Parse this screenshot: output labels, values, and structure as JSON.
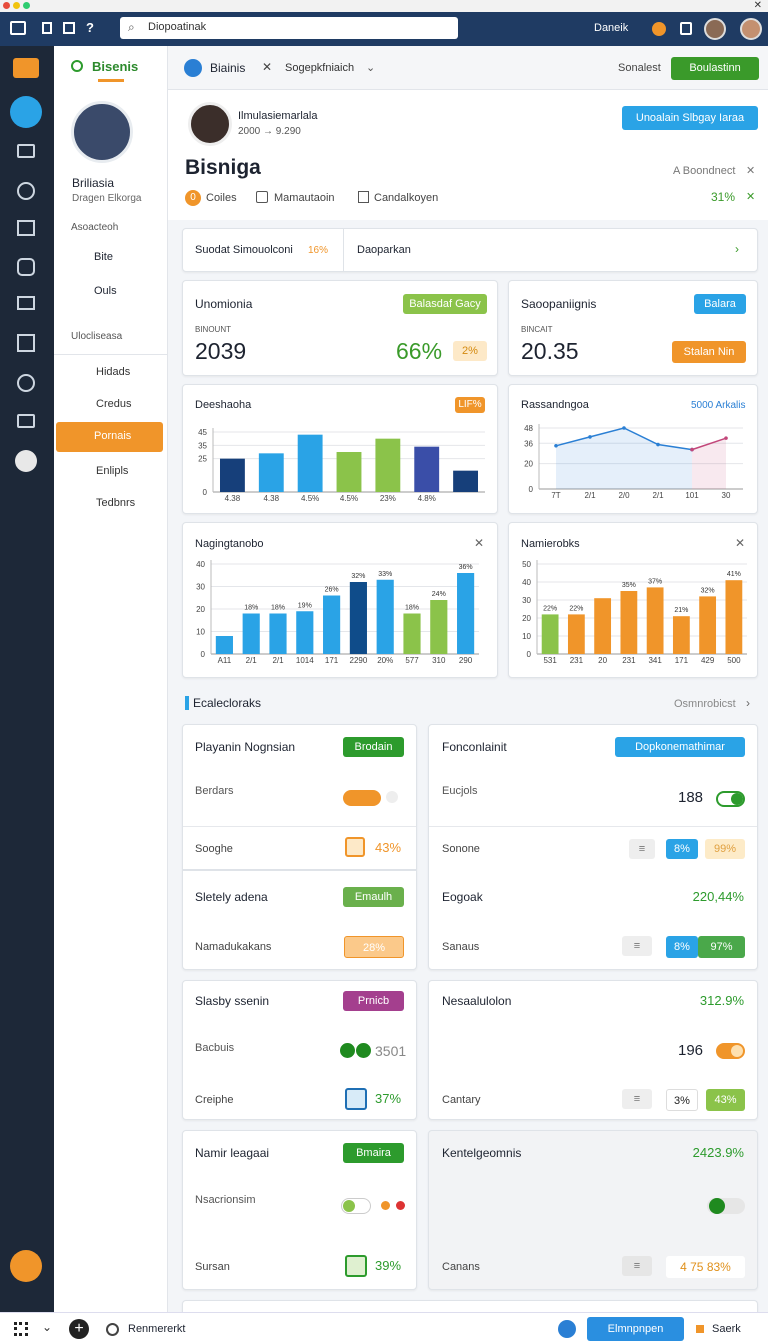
{
  "header": {
    "search": "Diopoatinak",
    "user": "Daneik"
  },
  "sidebar": {
    "brand": "Bisenis",
    "name": "Briliasia",
    "role": "Dragen Elkorga",
    "group1": "Asoacteoh",
    "items1": [
      "Bite",
      "Ouls"
    ],
    "group2": "Ulocliseasa",
    "items2": [
      "Hidads",
      "Credus",
      "Pornais",
      "Enlipls",
      "Tedbnrs"
    ]
  },
  "toolbar": {
    "tab": "Biainis",
    "breadcrumb": "Sogepkfniaich",
    "search": "Sonalest",
    "button": "Boulastinn"
  },
  "profile": {
    "name": "Ilmulasiemarlala",
    "meta": "2000 → 9.290",
    "button": "Unoalain Slbgay Iaraa",
    "title": "Bisniga",
    "connect": "A Boondnect",
    "count": "0",
    "filters": [
      "Coiles",
      "Mamautaoin",
      "Candalkoyen"
    ],
    "change": "31%"
  },
  "subtabs": {
    "first": "Suodat Simouolconi",
    "first_value": "16%",
    "second": "Daoparkan"
  },
  "stats": [
    {
      "title": "Unomionia",
      "badge": "Balasdaf Gacy",
      "label": "BINOUNT",
      "value": "2039",
      "change": "66%",
      "change2": "2%"
    },
    {
      "title": "Saoopaniignis",
      "badge": "Balara",
      "label": "BINCAIT",
      "value": "20.35",
      "badge2": "Stalan Nin"
    }
  ],
  "chart_data": [
    {
      "type": "bar",
      "title": "Deeshaoha",
      "annotation": "LIF%",
      "categories": [
        "4.38",
        "4.38",
        "4.5%",
        "4.5%",
        "23%",
        "4.8%",
        null
      ],
      "values": [
        25,
        29,
        43,
        30,
        40,
        34,
        16
      ],
      "colors": [
        "#163f7a",
        "#2aa3e6",
        "#2aa3e6",
        "#8bc34a",
        "#8bc34a",
        "#3a4ea8",
        "#163f7a"
      ],
      "ylim": [
        0,
        45
      ],
      "yticks": [
        0,
        25,
        35,
        45
      ],
      "grid": true
    },
    {
      "type": "line",
      "title": "Rassandngoa",
      "annotation": "5000 Arkalis",
      "categories": [
        "7T",
        "2/1",
        "2/0",
        "2/1",
        "101",
        "30"
      ],
      "series": [
        {
          "color": "#2a7fd4",
          "values": [
            34,
            41,
            48,
            35,
            31,
            null
          ]
        },
        {
          "color": "#c2477a",
          "values": [
            null,
            null,
            null,
            null,
            31,
            40
          ]
        }
      ],
      "ylim": [
        0,
        48
      ],
      "yticks": [
        0,
        20,
        36,
        48
      ],
      "grid": true
    },
    {
      "type": "bar",
      "title": "Nagingtanobo",
      "categories": [
        "A11",
        "2/1",
        "2/1",
        "1014",
        "171",
        "2290",
        "20%",
        "577",
        "310",
        "290"
      ],
      "values": [
        8,
        18,
        18,
        19,
        26,
        32,
        33,
        18,
        24,
        36
      ],
      "value_labels": [
        null,
        "18%",
        "18%",
        "19%",
        "26%",
        "32%",
        "33%",
        "18%",
        "24%",
        "36%"
      ],
      "colors": [
        "#2aa3e6",
        "#2aa3e6",
        "#2aa3e6",
        "#2aa3e6",
        "#2aa3e6",
        "#0f4c8a",
        "#2aa3e6",
        "#8bc34a",
        "#8bc34a",
        "#2aa3e6"
      ],
      "ylim": [
        0,
        40
      ],
      "yticks": [
        0,
        10,
        20,
        30,
        40
      ],
      "grid": true
    },
    {
      "type": "bar",
      "title": "Namierobks",
      "categories": [
        "531",
        "231",
        "20",
        "231",
        "341",
        "171",
        "429",
        "500"
      ],
      "values": [
        22,
        22,
        31,
        35,
        37,
        21,
        32,
        41
      ],
      "value_labels": [
        "22%",
        "22%",
        null,
        "35%",
        "37%",
        "21%",
        "32%",
        "41%"
      ],
      "colors": [
        "#8bc34a",
        "#f0952a",
        "#f0952a",
        "#f0952a",
        "#f0952a",
        "#f0952a",
        "#f0952a",
        "#f0952a"
      ],
      "ylim": [
        0,
        50
      ],
      "yticks": [
        0,
        10,
        20,
        30,
        40,
        50
      ],
      "grid": true
    }
  ],
  "section": {
    "title": "Ecalecloraks",
    "link": "Osmnrobicst"
  },
  "cards": [
    {
      "title": "Playanin Nognsian",
      "badge": "Brodain",
      "label1": "Berdars",
      "label2": "Sooghe",
      "value2": "43%"
    },
    {
      "title": "Sletely adena",
      "badge": "Emaulh",
      "label2": "Namadukakans",
      "value2": "28%"
    },
    {
      "title": "Slasby ssenin",
      "badge": "Prnicb",
      "label1": "Bacbuis",
      "value1": "3501",
      "label2": "Creiphe",
      "value2": "37%"
    },
    {
      "title": "Namir leagaai",
      "badge": "Bmaira",
      "label1": "Nsacrionsim",
      "label2": "Sursan",
      "value2": "39%"
    },
    {
      "title": "Fonconlainit",
      "badge": "Dopkonemathimar",
      "label1": "Eucjols",
      "value1": "188",
      "label2": "Sonone",
      "chips": [
        "8%",
        "99%"
      ]
    },
    {
      "title": "Eogoak",
      "headline": "220,44%",
      "label2": "Sanaus",
      "chips": [
        "8%",
        "97%"
      ]
    },
    {
      "title": "Nesaalulolon",
      "headline": "312.9%",
      "value1": "196",
      "label2": "Cantary",
      "chips": [
        "3%",
        "43%"
      ]
    },
    {
      "title": "Kentelgeomnis",
      "headline": "2423.9%",
      "label2": "Canans",
      "chips": [
        "4 75",
        "83%"
      ]
    }
  ],
  "taskbar": {
    "label": "Renmererkt",
    "button": "Elmnpnpen",
    "search": "Saerk"
  }
}
